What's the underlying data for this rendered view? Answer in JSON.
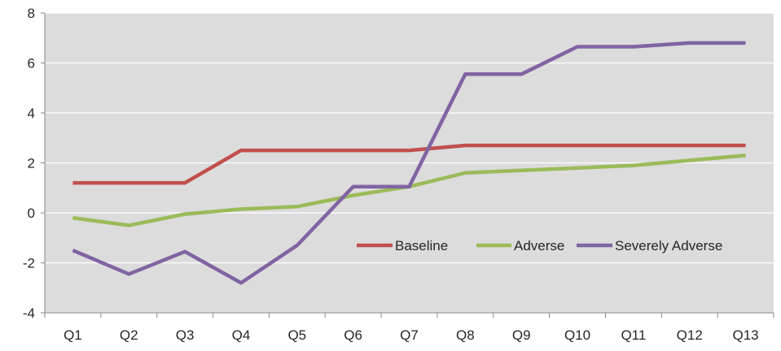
{
  "chart_data": {
    "type": "line",
    "categories": [
      "Q1",
      "Q2",
      "Q3",
      "Q4",
      "Q5",
      "Q6",
      "Q7",
      "Q8",
      "Q9",
      "Q10",
      "Q11",
      "Q12",
      "Q13"
    ],
    "ylim": [
      -4,
      8
    ],
    "yticks": [
      -4,
      -2,
      0,
      2,
      4,
      6,
      8
    ],
    "ytick_labels": [
      "-4",
      "-2",
      "0",
      "2",
      "4",
      "6",
      "8"
    ],
    "grid": true,
    "legend_position": "lower-right inside",
    "plot_background": "#dcdcdc",
    "series": [
      {
        "name": "Baseline",
        "color": "#c0504d",
        "values": [
          1.2,
          1.2,
          1.2,
          2.5,
          2.5,
          2.5,
          2.5,
          2.7,
          2.7,
          2.7,
          2.7,
          2.7,
          2.7
        ]
      },
      {
        "name": "Adverse",
        "color": "#9bbb59",
        "values": [
          -0.2,
          -0.5,
          -0.05,
          0.15,
          0.25,
          0.7,
          1.05,
          1.6,
          1.7,
          1.8,
          1.9,
          2.1,
          2.3
        ]
      },
      {
        "name": "Severely Adverse",
        "color": "#8064a2",
        "values": [
          -1.5,
          -2.45,
          -1.55,
          -2.8,
          -1.3,
          1.05,
          1.05,
          5.55,
          5.55,
          6.65,
          6.65,
          6.8,
          6.8
        ]
      }
    ]
  }
}
